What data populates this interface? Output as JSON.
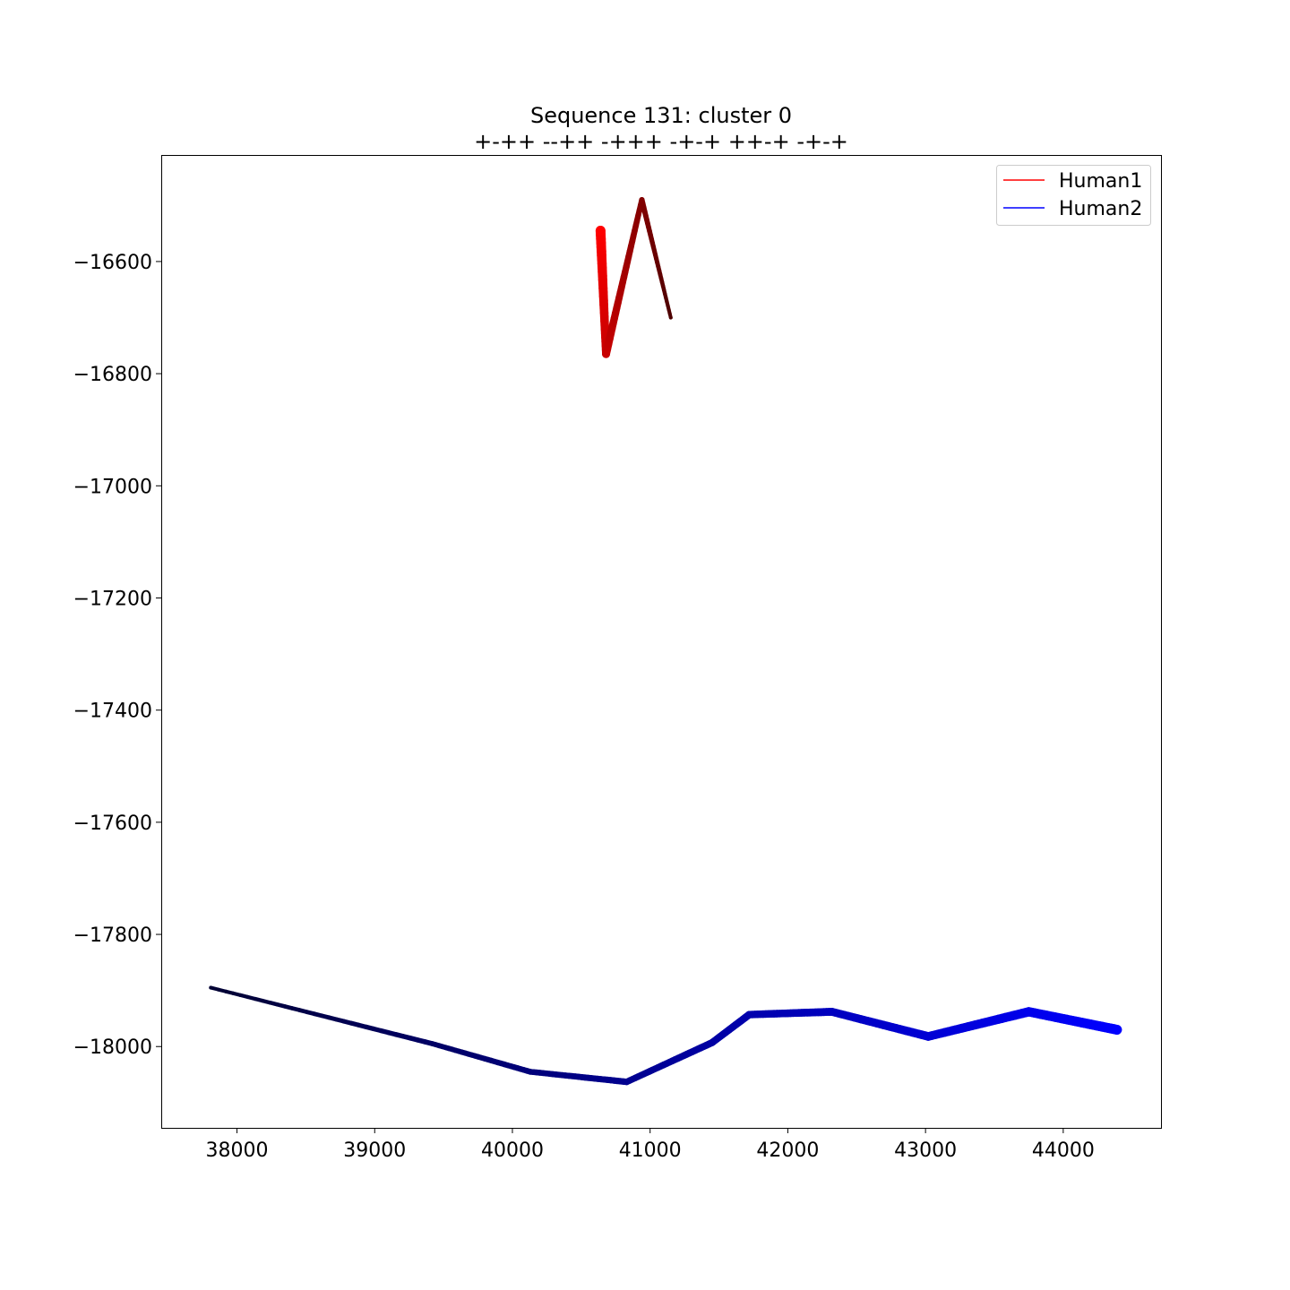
{
  "chart_data": {
    "type": "line",
    "title": "Sequence 131: cluster 0",
    "subtitle": "+-++ --++ -+++ -+-+ ++-+ -+-+",
    "xlabel": "",
    "ylabel": "",
    "xlim": [
      37450,
      44710
    ],
    "ylim": [
      -18145,
      -16410
    ],
    "xticks": [
      38000,
      39000,
      40000,
      41000,
      42000,
      43000,
      44000
    ],
    "yticks": [
      -16600,
      -16800,
      -17000,
      -17200,
      -17400,
      -17600,
      -17800,
      -18000
    ],
    "grid": false,
    "legend_position": "top-right",
    "legend": [
      {
        "label": "Human1",
        "color": "#ff0000"
      },
      {
        "label": "Human2",
        "color": "#0000ff"
      }
    ],
    "series": [
      {
        "name": "Human1",
        "start_color": "#ff0000",
        "end_color": "#4d0000",
        "start_width": 11,
        "end_width": 4,
        "points": [
          {
            "x": 40640,
            "y": -16545
          },
          {
            "x": 40680,
            "y": -16765
          },
          {
            "x": 40940,
            "y": -16490
          },
          {
            "x": 41150,
            "y": -16700
          }
        ]
      },
      {
        "name": "Human2",
        "start_color": "#0000ff",
        "end_color": "#000033",
        "start_width": 11,
        "end_width": 4,
        "points": [
          {
            "x": 44390,
            "y": -17970
          },
          {
            "x": 43750,
            "y": -17938
          },
          {
            "x": 43020,
            "y": -17982
          },
          {
            "x": 42320,
            "y": -17938
          },
          {
            "x": 41720,
            "y": -17943
          },
          {
            "x": 41450,
            "y": -17993
          },
          {
            "x": 40830,
            "y": -18063
          },
          {
            "x": 40130,
            "y": -18045
          },
          {
            "x": 39420,
            "y": -17995
          },
          {
            "x": 37810,
            "y": -17895
          }
        ]
      }
    ]
  }
}
